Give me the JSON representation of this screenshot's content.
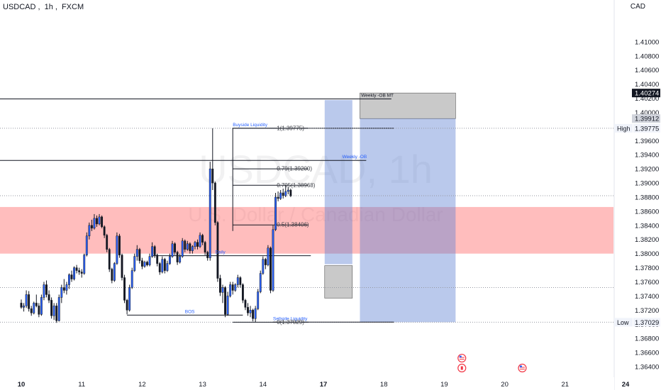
{
  "header": {
    "symbol": "USDCAD",
    "interval": "1h",
    "exchange": "FXCM",
    "currency": "CAD"
  },
  "watermark": {
    "ticker": "USDCAD, 1h",
    "description": "U.S. Dollar / Canadian Dollar"
  },
  "colors": {
    "bull": "#2962ff",
    "bear": "#131722",
    "zone_red": "#ff5252",
    "zone_blue": "#5b7fd1",
    "zone_gray": "#7f7f7f",
    "annotation_blue": "#2962ff"
  },
  "chart_data": {
    "type": "candlestick",
    "symbol": "USDCAD",
    "interval": "1h",
    "ylim": [
      1.3631,
      1.4137
    ],
    "y_ticks": [
      "1.36400",
      "1.36600",
      "1.36800",
      "1.37000",
      "1.37200",
      "1.37400",
      "1.37600",
      "1.37800",
      "1.38000",
      "1.38200",
      "1.38400",
      "1.38600",
      "1.38800",
      "1.39000",
      "1.39200",
      "1.39400",
      "1.39600",
      "1.39800",
      "1.40000",
      "1.40200",
      "1.40400",
      "1.40600",
      "1.40800",
      "1.41000"
    ],
    "x_ticks": [
      {
        "label": "10",
        "bar": 0
      },
      {
        "label": "11",
        "bar": 24
      },
      {
        "label": "12",
        "bar": 48
      },
      {
        "label": "13",
        "bar": 72
      },
      {
        "label": "14",
        "bar": 96
      },
      {
        "label": "17",
        "bar": 120
      },
      {
        "label": "18",
        "bar": 144
      },
      {
        "label": "19",
        "bar": 168
      },
      {
        "label": "20",
        "bar": 192
      },
      {
        "label": "21",
        "bar": 216
      },
      {
        "label": "24",
        "bar": 240
      }
    ],
    "price_labels": [
      {
        "text": "1.40274",
        "price": 1.40274,
        "style": "dark"
      },
      {
        "text": "1.39912",
        "price": 1.39912,
        "style": "gray"
      },
      {
        "tag": "High",
        "text": "1.39775",
        "price": 1.39775,
        "style": "light"
      },
      {
        "tag": "Low",
        "text": "1.37029",
        "price": 1.37029,
        "style": "light"
      }
    ],
    "zones": [
      {
        "name": "red-zone",
        "bar_from": -9,
        "bar_to": 247,
        "price_top": 1.3866,
        "price_bottom": 1.38,
        "color": "red"
      },
      {
        "name": "blue-zone-left",
        "bar_from": 120.5,
        "bar_to": 131.5,
        "price_top": 1.40175,
        "price_bottom": 1.3785,
        "color": "blue"
      },
      {
        "name": "gray-zone-left",
        "bar_from": 120.5,
        "bar_to": 131.5,
        "price_top": 1.3783,
        "price_bottom": 1.3737,
        "color": "gray"
      },
      {
        "name": "gray-zone-right",
        "bar_from": 134.5,
        "bar_to": 172.5,
        "price_top": 1.40274,
        "price_bottom": 1.39912,
        "color": "gray"
      },
      {
        "name": "blue-zone-right",
        "bar_from": 134.5,
        "bar_to": 172.5,
        "price_top": 1.39912,
        "price_bottom": 1.37029,
        "color": "blue"
      }
    ],
    "lines": [
      {
        "name": "weekly-ob-mt-line",
        "price": 1.4019,
        "bar_from": -9,
        "bar_to": 147,
        "style": "solid",
        "label": "Weekly -OB MT",
        "label_bar": 135
      },
      {
        "name": "weekly-ob-line",
        "price": 1.3932,
        "bar_from": -9,
        "bar_to": 137,
        "style": "solid",
        "label": "Weekly -OB",
        "label_bar": 127.5
      },
      {
        "name": "buyside-liquidity-line",
        "price": 1.39775,
        "bar_from": 84,
        "bar_to": 148,
        "style": "solid",
        "label": "Buyside Liquidity",
        "label_bar": 84
      },
      {
        "name": "high-dotted-line",
        "price": 1.39775,
        "bar_from": -9,
        "bar_to": 247,
        "style": "dotted"
      },
      {
        "name": "current-price-dotted-line",
        "price": 1.3882,
        "bar_from": -9,
        "bar_to": 247,
        "style": "dotted"
      },
      {
        "name": "mid-dotted-line",
        "price": 1.3752,
        "bar_from": -9,
        "bar_to": 247,
        "style": "dotted"
      },
      {
        "name": "low-dotted-line",
        "price": 1.37029,
        "bar_from": -9,
        "bar_to": 247,
        "style": "dotted"
      },
      {
        "name": "daily-level-line",
        "price": 1.3797,
        "bar_from": 52,
        "bar_to": 115,
        "style": "solid",
        "label": "Daily",
        "label_bar": 77
      },
      {
        "name": "bos-line",
        "price": 1.3713,
        "bar_from": 42,
        "bar_to": 88,
        "style": "solid",
        "label": "BOS",
        "label_bar": 65
      },
      {
        "name": "sellside-liquidity-line",
        "price": 1.3703,
        "bar_from": 100,
        "bar_to": 148,
        "style": "solid",
        "label": "Sellside Liquidity",
        "label_bar": 100
      }
    ],
    "fibonacci": [
      {
        "ratio": "1",
        "text": "1(1.39775)",
        "price": 1.39775
      },
      {
        "ratio": "0.79",
        "text": "0.79(1.39200)",
        "price": 1.392
      },
      {
        "ratio": "0.705",
        "text": "0.705(1.38968)",
        "price": 1.38968
      },
      {
        "ratio": "0.5",
        "text": "0.5(1.38406)",
        "price": 1.38406
      },
      {
        "ratio": "0",
        "text": "0(1.37029)",
        "price": 1.37029
      }
    ],
    "fib_bar_from": 84,
    "fib_bar_to": 114,
    "event_icons": [
      {
        "flag": "us",
        "bar": 175,
        "price": 1.3652
      },
      {
        "flag": "ca",
        "bar": 175,
        "price": 1.3638
      },
      {
        "flag": "us",
        "bar": 199,
        "price": 1.3638
      }
    ],
    "candles": [
      [
        1.373,
        1.3735,
        1.3722,
        1.3724
      ],
      [
        1.3724,
        1.373,
        1.3718,
        1.3726
      ],
      [
        1.3726,
        1.3748,
        1.3723,
        1.3742
      ],
      [
        1.3742,
        1.3747,
        1.3718,
        1.3722
      ],
      [
        1.3722,
        1.3726,
        1.3712,
        1.3716
      ],
      [
        1.3716,
        1.3732,
        1.3714,
        1.373
      ],
      [
        1.373,
        1.3742,
        1.3724,
        1.3726
      ],
      [
        1.3726,
        1.373,
        1.371,
        1.3714
      ],
      [
        1.3714,
        1.3742,
        1.3712,
        1.3738
      ],
      [
        1.3738,
        1.376,
        1.3734,
        1.3756
      ],
      [
        1.3756,
        1.3762,
        1.3738,
        1.3742
      ],
      [
        1.3742,
        1.3748,
        1.373,
        1.3734
      ],
      [
        1.3734,
        1.3738,
        1.3708,
        1.3712
      ],
      [
        1.3712,
        1.373,
        1.3706,
        1.3726
      ],
      [
        1.3726,
        1.373,
        1.3702,
        1.3705
      ],
      [
        1.3705,
        1.3742,
        1.3704,
        1.3738
      ],
      [
        1.3738,
        1.3756,
        1.373,
        1.3752
      ],
      [
        1.3752,
        1.3764,
        1.3744,
        1.3748
      ],
      [
        1.3748,
        1.376,
        1.3742,
        1.3756
      ],
      [
        1.3756,
        1.3772,
        1.375,
        1.377
      ],
      [
        1.377,
        1.3776,
        1.376,
        1.3764
      ],
      [
        1.3764,
        1.3782,
        1.3762,
        1.378
      ],
      [
        1.378,
        1.3784,
        1.3772,
        1.3776
      ],
      [
        1.3776,
        1.378,
        1.377,
        1.3774
      ],
      [
        1.3774,
        1.3778,
        1.3766,
        1.3772
      ],
      [
        1.3772,
        1.38,
        1.377,
        1.3798
      ],
      [
        1.3798,
        1.383,
        1.3796,
        1.3825
      ],
      [
        1.3825,
        1.3844,
        1.382,
        1.384
      ],
      [
        1.384,
        1.3848,
        1.3832,
        1.3836
      ],
      [
        1.3836,
        1.3856,
        1.3834,
        1.385
      ],
      [
        1.385,
        1.3854,
        1.3838,
        1.3842
      ],
      [
        1.3842,
        1.3856,
        1.384,
        1.3852
      ],
      [
        1.3852,
        1.3854,
        1.3836,
        1.3838
      ],
      [
        1.3838,
        1.384,
        1.3822,
        1.3826
      ],
      [
        1.3826,
        1.3828,
        1.3802,
        1.3806
      ],
      [
        1.3806,
        1.3808,
        1.3774,
        1.3778
      ],
      [
        1.3778,
        1.378,
        1.3758,
        1.3762
      ],
      [
        1.3762,
        1.3788,
        1.376,
        1.3786
      ],
      [
        1.3786,
        1.383,
        1.3784,
        1.3825
      ],
      [
        1.3825,
        1.3828,
        1.3794,
        1.3798
      ],
      [
        1.3798,
        1.38,
        1.3762,
        1.3766
      ],
      [
        1.3766,
        1.377,
        1.373,
        1.3734
      ],
      [
        1.3734,
        1.3736,
        1.3714,
        1.372
      ],
      [
        1.372,
        1.3756,
        1.3718,
        1.3752
      ],
      [
        1.3752,
        1.378,
        1.375,
        1.3776
      ],
      [
        1.3776,
        1.38,
        1.3774,
        1.3796
      ],
      [
        1.3796,
        1.3812,
        1.379,
        1.3806
      ],
      [
        1.3806,
        1.3808,
        1.3786,
        1.379
      ],
      [
        1.379,
        1.3794,
        1.3778,
        1.3782
      ],
      [
        1.3782,
        1.379,
        1.378,
        1.3788
      ],
      [
        1.3788,
        1.379,
        1.3782,
        1.3784
      ],
      [
        1.3784,
        1.38,
        1.3782,
        1.3796
      ],
      [
        1.3796,
        1.3816,
        1.3794,
        1.381
      ],
      [
        1.381,
        1.3812,
        1.3794,
        1.3798
      ],
      [
        1.3798,
        1.38,
        1.3782,
        1.3786
      ],
      [
        1.3786,
        1.3788,
        1.377,
        1.3774
      ],
      [
        1.3774,
        1.3796,
        1.3772,
        1.3792
      ],
      [
        1.3792,
        1.3794,
        1.3772,
        1.3776
      ],
      [
        1.3776,
        1.379,
        1.3774,
        1.3786
      ],
      [
        1.3786,
        1.38,
        1.3784,
        1.3796
      ],
      [
        1.3796,
        1.3818,
        1.3794,
        1.3814
      ],
      [
        1.3814,
        1.3816,
        1.3798,
        1.3802
      ],
      [
        1.3802,
        1.3804,
        1.3784,
        1.3788
      ],
      [
        1.3788,
        1.38,
        1.3786,
        1.3796
      ],
      [
        1.3796,
        1.3822,
        1.3794,
        1.3818
      ],
      [
        1.3818,
        1.382,
        1.3802,
        1.3806
      ],
      [
        1.3806,
        1.3818,
        1.3804,
        1.3814
      ],
      [
        1.3814,
        1.3816,
        1.38,
        1.3804
      ],
      [
        1.3804,
        1.3812,
        1.38,
        1.381
      ],
      [
        1.381,
        1.3818,
        1.3806,
        1.3816
      ],
      [
        1.3816,
        1.382,
        1.3806,
        1.381
      ],
      [
        1.381,
        1.383,
        1.3808,
        1.3826
      ],
      [
        1.3826,
        1.3828,
        1.3812,
        1.3816
      ],
      [
        1.3816,
        1.3818,
        1.3798,
        1.3802
      ],
      [
        1.3802,
        1.3804,
        1.379,
        1.3794
      ],
      [
        1.3794,
        1.393,
        1.379,
        1.392
      ],
      [
        1.392,
        1.39775,
        1.389,
        1.39
      ],
      [
        1.39,
        1.3902,
        1.384,
        1.3844
      ],
      [
        1.3844,
        1.3846,
        1.376,
        1.3765
      ],
      [
        1.3765,
        1.377,
        1.374,
        1.3745
      ],
      [
        1.3745,
        1.3756,
        1.373,
        1.3752
      ],
      [
        1.3752,
        1.3754,
        1.371,
        1.3714
      ],
      [
        1.3714,
        1.3746,
        1.3712,
        1.374
      ],
      [
        1.374,
        1.376,
        1.3738,
        1.3756
      ],
      [
        1.3756,
        1.376,
        1.3742,
        1.3748
      ],
      [
        1.3748,
        1.3758,
        1.3746,
        1.3756
      ],
      [
        1.3756,
        1.377,
        1.3752,
        1.3766
      ],
      [
        1.3766,
        1.3768,
        1.3752,
        1.3756
      ],
      [
        1.3756,
        1.3758,
        1.373,
        1.3734
      ],
      [
        1.3734,
        1.3736,
        1.372,
        1.3724
      ],
      [
        1.3724,
        1.373,
        1.3712,
        1.3716
      ],
      [
        1.3716,
        1.3726,
        1.371,
        1.372
      ],
      [
        1.372,
        1.3722,
        1.3704,
        1.3708
      ],
      [
        1.3708,
        1.3726,
        1.37029,
        1.3722
      ],
      [
        1.3722,
        1.375,
        1.372,
        1.3746
      ],
      [
        1.3746,
        1.3776,
        1.3744,
        1.3772
      ],
      [
        1.3772,
        1.3796,
        1.377,
        1.3792
      ],
      [
        1.3792,
        1.3794,
        1.3778,
        1.3784
      ],
      [
        1.3784,
        1.3812,
        1.3782,
        1.3808
      ],
      [
        1.3808,
        1.381,
        1.3744,
        1.3748
      ],
      [
        1.3748,
        1.384,
        1.3746,
        1.3834
      ],
      [
        1.3834,
        1.3886,
        1.3832,
        1.388
      ],
      [
        1.388,
        1.3888,
        1.3874,
        1.3878
      ],
      [
        1.3878,
        1.389,
        1.3876,
        1.3886
      ],
      [
        1.3886,
        1.3892,
        1.3878,
        1.3882
      ],
      [
        1.3882,
        1.38968,
        1.388,
        1.3888
      ],
      [
        1.3888,
        1.3894,
        1.3884,
        1.389
      ],
      [
        1.389,
        1.3892,
        1.388,
        1.3882
      ]
    ]
  }
}
